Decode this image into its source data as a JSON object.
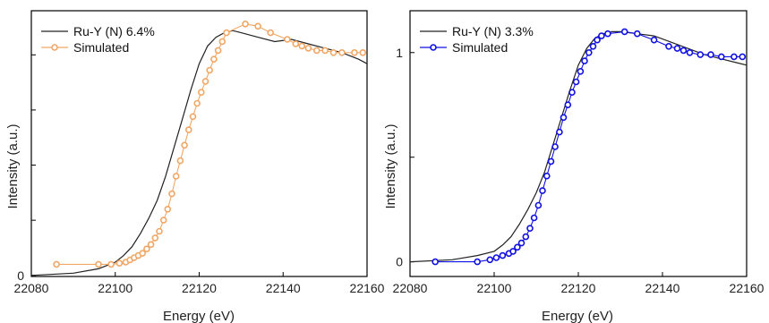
{
  "chart_data": [
    {
      "type": "line",
      "title": "",
      "xlabel": "Energy (eV)",
      "ylabel": "Intensity (a.u.)",
      "xlim": [
        22080,
        22160
      ],
      "ylim": [
        -0.005,
        1.2
      ],
      "x_ticks": [
        22080,
        22100,
        22120,
        22140,
        22160
      ],
      "x_tick_labels": [
        "22080",
        "22100",
        "22120",
        "22140",
        "22160"
      ],
      "y_ticks": [
        0,
        0.25,
        0.5,
        0.75,
        1.0
      ],
      "y_tick_labels": [
        "0",
        "",
        "",
        "",
        ""
      ],
      "grid": false,
      "legend_position": "top-left",
      "series": [
        {
          "name": "Ru-Y (N) 6.4%",
          "color": "#222222",
          "marker": "none",
          "x": [
            22080,
            22090,
            22096,
            22100,
            22102,
            22104,
            22106,
            22108,
            22110,
            22112,
            22114,
            22116,
            22118,
            22120,
            22122,
            22124,
            22126,
            22128,
            22130,
            22134,
            22138,
            22142,
            22146,
            22150,
            22154,
            22158,
            22160
          ],
          "y": [
            0.0,
            0.01,
            0.03,
            0.06,
            0.09,
            0.13,
            0.19,
            0.26,
            0.34,
            0.45,
            0.58,
            0.71,
            0.84,
            0.96,
            1.04,
            1.08,
            1.1,
            1.11,
            1.1,
            1.08,
            1.06,
            1.07,
            1.05,
            1.03,
            1.01,
            0.98,
            0.96
          ]
        },
        {
          "name": "Simulated",
          "color": "#f0a766",
          "marker": "circle",
          "x": [
            22086,
            22096,
            22099,
            22101,
            22102.5,
            22103.5,
            22104.5,
            22105.5,
            22106.5,
            22107.5,
            22108.5,
            22109.5,
            22110.5,
            22111.5,
            22112.5,
            22113.5,
            22114.5,
            22115.5,
            22116.5,
            22117.5,
            22118.5,
            22119.5,
            22120.5,
            22121.5,
            22122.5,
            22123.5,
            22124.5,
            22125.5,
            22126.5,
            22131,
            22134,
            22137,
            22141,
            22143,
            22144.5,
            22146,
            22148,
            22150,
            22152,
            22154,
            22157,
            22159
          ],
          "y": [
            0.05,
            0.05,
            0.05,
            0.055,
            0.06,
            0.07,
            0.08,
            0.09,
            0.1,
            0.12,
            0.14,
            0.17,
            0.2,
            0.25,
            0.3,
            0.37,
            0.45,
            0.52,
            0.59,
            0.66,
            0.72,
            0.78,
            0.83,
            0.88,
            0.93,
            0.98,
            1.02,
            1.06,
            1.1,
            1.14,
            1.13,
            1.1,
            1.07,
            1.05,
            1.04,
            1.03,
            1.02,
            1.02,
            1.01,
            1.01,
            1.01,
            1.01
          ]
        }
      ]
    },
    {
      "type": "line",
      "title": "",
      "xlabel": "Energy (eV)",
      "ylabel": "Intensity (a.u.)",
      "xlim": [
        22080,
        22160
      ],
      "ylim": [
        -0.07,
        1.2
      ],
      "x_ticks": [
        22080,
        22100,
        22120,
        22140,
        22160
      ],
      "x_tick_labels": [
        "22080",
        "22100",
        "22120",
        "22140",
        "22160"
      ],
      "y_ticks": [
        0,
        0.5,
        1
      ],
      "y_tick_labels": [
        "0",
        "",
        "1"
      ],
      "grid": false,
      "legend_position": "top-left",
      "series": [
        {
          "name": "Ru-Y (N) 3.3%",
          "color": "#222222",
          "marker": "none",
          "x": [
            22080,
            22090,
            22096,
            22100,
            22102,
            22104,
            22106,
            22108,
            22110,
            22112,
            22114,
            22116,
            22118,
            22120,
            22122,
            22124,
            22126,
            22128,
            22130,
            22134,
            22138,
            22142,
            22146,
            22150,
            22154,
            22158,
            22160
          ],
          "y": [
            0.0,
            0.01,
            0.03,
            0.05,
            0.08,
            0.12,
            0.18,
            0.25,
            0.33,
            0.43,
            0.56,
            0.69,
            0.82,
            0.94,
            1.02,
            1.07,
            1.09,
            1.1,
            1.1,
            1.09,
            1.08,
            1.05,
            1.02,
            0.99,
            0.97,
            0.95,
            0.94
          ]
        },
        {
          "name": "Simulated",
          "color": "#1010e0",
          "marker": "circle",
          "x": [
            22086,
            22096,
            22099,
            22100.5,
            22102,
            22103.5,
            22104.5,
            22105.5,
            22106.5,
            22107.5,
            22108.5,
            22109.5,
            22110.5,
            22111.5,
            22112.5,
            22113.5,
            22114.5,
            22115.5,
            22116.5,
            22117.5,
            22118.5,
            22119.5,
            22120.5,
            22121.5,
            22122.5,
            22123.5,
            22124.5,
            22125.5,
            22127,
            22131,
            22134,
            22138,
            22141.5,
            22143.5,
            22145,
            22146.5,
            22149,
            22151.5,
            22154,
            22157,
            22159
          ],
          "y": [
            0.0,
            0.0,
            0.01,
            0.02,
            0.03,
            0.04,
            0.05,
            0.07,
            0.09,
            0.12,
            0.16,
            0.21,
            0.27,
            0.34,
            0.41,
            0.48,
            0.55,
            0.62,
            0.69,
            0.75,
            0.81,
            0.86,
            0.91,
            0.96,
            1.0,
            1.03,
            1.06,
            1.08,
            1.09,
            1.1,
            1.09,
            1.06,
            1.03,
            1.02,
            1.01,
            1.0,
            0.99,
            0.99,
            0.98,
            0.98,
            0.98
          ]
        }
      ]
    }
  ]
}
